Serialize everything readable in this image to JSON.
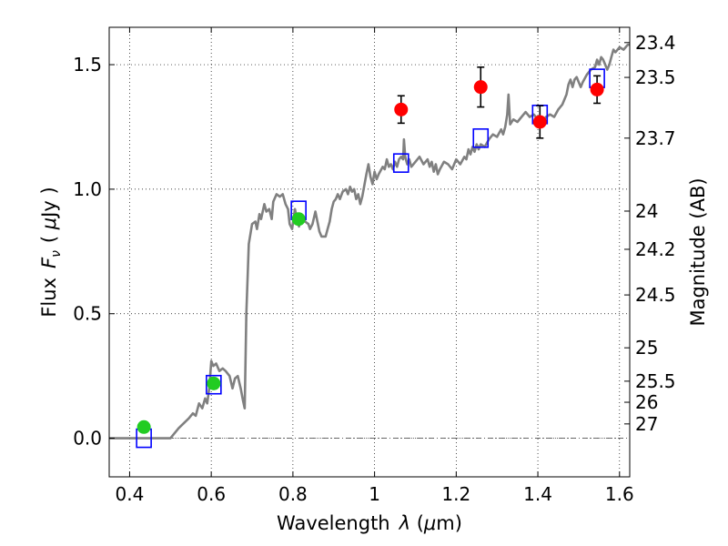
{
  "chart_data": {
    "type": "scatter",
    "xlabel_text": "Wavelength",
    "xlabel_symbol": "λ",
    "xlabel_unit_open": " (",
    "xlabel_mu": "μ",
    "xlabel_unit_close": "m)",
    "ylabel_text": "Flux",
    "ylabel_symbol": "F",
    "ylabel_sub": "ν",
    "ylabel_unit_open": "( ",
    "ylabel_mu": "μ",
    "ylabel_unit_close": "Jy )",
    "y2label": "Magnitude (AB)",
    "xlim": [
      0.35,
      1.625
    ],
    "ylim": [
      -0.155,
      1.65
    ],
    "x_ticks": [
      {
        "value": 0.4,
        "label": "0.4"
      },
      {
        "value": 0.6,
        "label": "0.6"
      },
      {
        "value": 0.8,
        "label": "0.8"
      },
      {
        "value": 1.0,
        "label": "1"
      },
      {
        "value": 1.2,
        "label": "1.2"
      },
      {
        "value": 1.4,
        "label": "1.4"
      },
      {
        "value": 1.6,
        "label": "1.6"
      }
    ],
    "y_ticks": [
      {
        "value": 0.0,
        "label": "0.0"
      },
      {
        "value": 0.5,
        "label": "0.5"
      },
      {
        "value": 1.0,
        "label": "1.0"
      },
      {
        "value": 1.5,
        "label": "1.5"
      }
    ],
    "mag_ticks": [
      {
        "flux": 1.5886,
        "label": "23.4"
      },
      {
        "flux": 1.4488,
        "label": "23.5"
      },
      {
        "flux": 1.205,
        "label": "23.7"
      },
      {
        "flux": 0.912,
        "label": "24"
      },
      {
        "flux": 0.7586,
        "label": "24.2"
      },
      {
        "flux": 0.5754,
        "label": "24.5"
      },
      {
        "flux": 0.3631,
        "label": "25"
      },
      {
        "flux": 0.2291,
        "label": "25.5"
      },
      {
        "flux": 0.1445,
        "label": "26"
      },
      {
        "flux": 0.0575,
        "label": "27"
      }
    ],
    "colors": {
      "sed": "#808080",
      "model_box": "#0000ff",
      "green": "#22cc22",
      "red": "#ff0000",
      "errorbar": "#000000"
    },
    "sed": [
      [
        0.35,
        0.0
      ],
      [
        0.5,
        0.0
      ],
      [
        0.52,
        0.04
      ],
      [
        0.545,
        0.08
      ],
      [
        0.555,
        0.1
      ],
      [
        0.562,
        0.09
      ],
      [
        0.57,
        0.14
      ],
      [
        0.578,
        0.12
      ],
      [
        0.585,
        0.16
      ],
      [
        0.59,
        0.14
      ],
      [
        0.595,
        0.2
      ],
      [
        0.6,
        0.31
      ],
      [
        0.605,
        0.29
      ],
      [
        0.612,
        0.3
      ],
      [
        0.62,
        0.27
      ],
      [
        0.628,
        0.28
      ],
      [
        0.635,
        0.27
      ],
      [
        0.645,
        0.25
      ],
      [
        0.652,
        0.2
      ],
      [
        0.658,
        0.24
      ],
      [
        0.665,
        0.25
      ],
      [
        0.672,
        0.2
      ],
      [
        0.678,
        0.15
      ],
      [
        0.682,
        0.12
      ],
      [
        0.686,
        0.5
      ],
      [
        0.692,
        0.78
      ],
      [
        0.7,
        0.86
      ],
      [
        0.708,
        0.87
      ],
      [
        0.712,
        0.84
      ],
      [
        0.718,
        0.9
      ],
      [
        0.722,
        0.88
      ],
      [
        0.73,
        0.94
      ],
      [
        0.735,
        0.91
      ],
      [
        0.742,
        0.92
      ],
      [
        0.748,
        0.88
      ],
      [
        0.752,
        0.95
      ],
      [
        0.76,
        0.98
      ],
      [
        0.768,
        0.97
      ],
      [
        0.775,
        0.98
      ],
      [
        0.782,
        0.94
      ],
      [
        0.788,
        0.92
      ],
      [
        0.792,
        0.86
      ],
      [
        0.798,
        0.84
      ],
      [
        0.805,
        0.92
      ],
      [
        0.81,
        0.88
      ],
      [
        0.815,
        0.85
      ],
      [
        0.82,
        0.9
      ],
      [
        0.83,
        0.87
      ],
      [
        0.838,
        0.86
      ],
      [
        0.842,
        0.84
      ],
      [
        0.848,
        0.86
      ],
      [
        0.855,
        0.91
      ],
      [
        0.86,
        0.87
      ],
      [
        0.865,
        0.83
      ],
      [
        0.87,
        0.81
      ],
      [
        0.88,
        0.81
      ],
      [
        0.885,
        0.84
      ],
      [
        0.89,
        0.87
      ],
      [
        0.895,
        0.92
      ],
      [
        0.9,
        0.95
      ],
      [
        0.905,
        0.96
      ],
      [
        0.91,
        0.98
      ],
      [
        0.915,
        0.96
      ],
      [
        0.922,
        0.99
      ],
      [
        0.93,
        1.0
      ],
      [
        0.935,
        0.98
      ],
      [
        0.94,
        1.01
      ],
      [
        0.945,
        0.99
      ],
      [
        0.95,
        1.0
      ],
      [
        0.955,
        0.96
      ],
      [
        0.96,
        0.98
      ],
      [
        0.965,
        0.94
      ],
      [
        0.97,
        0.97
      ],
      [
        0.98,
        1.06
      ],
      [
        0.985,
        1.1
      ],
      [
        0.99,
        1.05
      ],
      [
        0.995,
        1.02
      ],
      [
        1.0,
        1.07
      ],
      [
        1.005,
        1.04
      ],
      [
        1.01,
        1.06
      ],
      [
        1.02,
        1.09
      ],
      [
        1.025,
        1.08
      ],
      [
        1.03,
        1.12
      ],
      [
        1.035,
        1.09
      ],
      [
        1.04,
        1.1
      ],
      [
        1.045,
        1.08
      ],
      [
        1.05,
        1.11
      ],
      [
        1.055,
        1.09
      ],
      [
        1.06,
        1.12
      ],
      [
        1.065,
        1.13
      ],
      [
        1.07,
        1.12
      ],
      [
        1.072,
        1.2
      ],
      [
        1.075,
        1.13
      ],
      [
        1.08,
        1.1
      ],
      [
        1.085,
        1.12
      ],
      [
        1.09,
        1.09
      ],
      [
        1.1,
        1.11
      ],
      [
        1.11,
        1.13
      ],
      [
        1.12,
        1.1
      ],
      [
        1.13,
        1.12
      ],
      [
        1.135,
        1.09
      ],
      [
        1.14,
        1.11
      ],
      [
        1.145,
        1.07
      ],
      [
        1.15,
        1.1
      ],
      [
        1.155,
        1.06
      ],
      [
        1.16,
        1.08
      ],
      [
        1.17,
        1.11
      ],
      [
        1.18,
        1.1
      ],
      [
        1.19,
        1.08
      ],
      [
        1.2,
        1.12
      ],
      [
        1.21,
        1.1
      ],
      [
        1.22,
        1.13
      ],
      [
        1.225,
        1.12
      ],
      [
        1.23,
        1.16
      ],
      [
        1.235,
        1.14
      ],
      [
        1.24,
        1.17
      ],
      [
        1.245,
        1.15
      ],
      [
        1.25,
        1.18
      ],
      [
        1.255,
        1.16
      ],
      [
        1.26,
        1.18
      ],
      [
        1.27,
        1.17
      ],
      [
        1.28,
        1.2
      ],
      [
        1.29,
        1.22
      ],
      [
        1.3,
        1.21
      ],
      [
        1.31,
        1.24
      ],
      [
        1.315,
        1.22
      ],
      [
        1.32,
        1.25
      ],
      [
        1.325,
        1.3
      ],
      [
        1.328,
        1.38
      ],
      [
        1.332,
        1.26
      ],
      [
        1.34,
        1.28
      ],
      [
        1.35,
        1.27
      ],
      [
        1.36,
        1.29
      ],
      [
        1.37,
        1.31
      ],
      [
        1.38,
        1.29
      ],
      [
        1.39,
        1.3
      ],
      [
        1.4,
        1.28
      ],
      [
        1.41,
        1.26
      ],
      [
        1.42,
        1.29
      ],
      [
        1.43,
        1.3
      ],
      [
        1.44,
        1.29
      ],
      [
        1.45,
        1.32
      ],
      [
        1.46,
        1.34
      ],
      [
        1.47,
        1.38
      ],
      [
        1.475,
        1.42
      ],
      [
        1.48,
        1.44
      ],
      [
        1.485,
        1.41
      ],
      [
        1.49,
        1.44
      ],
      [
        1.495,
        1.45
      ],
      [
        1.5,
        1.43
      ],
      [
        1.505,
        1.41
      ],
      [
        1.51,
        1.43
      ],
      [
        1.52,
        1.46
      ],
      [
        1.53,
        1.48
      ],
      [
        1.54,
        1.49
      ],
      [
        1.545,
        1.52
      ],
      [
        1.55,
        1.5
      ],
      [
        1.555,
        1.53
      ],
      [
        1.56,
        1.52
      ],
      [
        1.565,
        1.5
      ],
      [
        1.57,
        1.48
      ],
      [
        1.575,
        1.5
      ],
      [
        1.58,
        1.53
      ],
      [
        1.585,
        1.56
      ],
      [
        1.59,
        1.55
      ],
      [
        1.6,
        1.57
      ],
      [
        1.61,
        1.56
      ],
      [
        1.62,
        1.58
      ],
      [
        1.625,
        1.58
      ]
    ],
    "model_boxes": [
      {
        "x": 0.435,
        "y": 0.0
      },
      {
        "x": 0.606,
        "y": 0.215
      },
      {
        "x": 0.814,
        "y": 0.915
      },
      {
        "x": 1.065,
        "y": 1.105
      },
      {
        "x": 1.26,
        "y": 1.205
      },
      {
        "x": 1.405,
        "y": 1.3
      },
      {
        "x": 1.545,
        "y": 1.445
      }
    ],
    "photometry": [
      {
        "x": 0.435,
        "y": 0.045,
        "err": 0.018,
        "color": "green"
      },
      {
        "x": 0.606,
        "y": 0.22,
        "err": 0.02,
        "color": "green"
      },
      {
        "x": 0.814,
        "y": 0.88,
        "err": 0.02,
        "color": "green"
      },
      {
        "x": 1.065,
        "y": 1.32,
        "err": 0.055,
        "color": "red"
      },
      {
        "x": 1.26,
        "y": 1.41,
        "err": 0.08,
        "color": "red"
      },
      {
        "x": 1.405,
        "y": 1.27,
        "err": 0.065,
        "color": "red"
      },
      {
        "x": 1.545,
        "y": 1.4,
        "err": 0.055,
        "color": "red"
      }
    ]
  }
}
